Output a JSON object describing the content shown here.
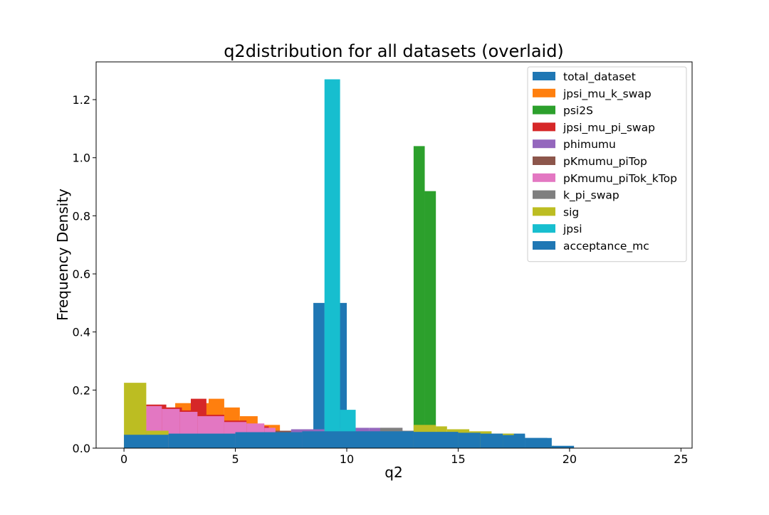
{
  "chart_data": {
    "type": "bar",
    "title": "q2distribution for all datasets (overlaid)",
    "xlabel": "q2",
    "ylabel": "Frequency Density",
    "xlim": [
      -1.25,
      25.5
    ],
    "ylim": [
      0,
      1.33
    ],
    "xticks": [
      0,
      5,
      10,
      15,
      20,
      25
    ],
    "xtick_labels": [
      "0",
      "5",
      "10",
      "15",
      "20",
      "25"
    ],
    "yticks": [
      0.0,
      0.2,
      0.4,
      0.6,
      0.8,
      1.0,
      1.2
    ],
    "ytick_labels": [
      "0.0",
      "0.2",
      "0.4",
      "0.6",
      "0.8",
      "1.0",
      "1.2"
    ],
    "grid": false,
    "legend_position": "top-right",
    "series": [
      {
        "name": "total_dataset",
        "color": "#1f77b4",
        "bins": [
          [
            0.0,
            0.5,
            0.047
          ],
          [
            0.5,
            8.5,
            0.055
          ],
          [
            8.5,
            9.0,
            0.5
          ],
          [
            9.0,
            10.0,
            0.5
          ],
          [
            10.0,
            13.0,
            0.06
          ],
          [
            13.0,
            16.0,
            0.055
          ],
          [
            16.0,
            18.0,
            0.05
          ],
          [
            18.0,
            19.0,
            0.035
          ]
        ]
      },
      {
        "name": "jpsi_mu_k_swap",
        "color": "#ff7f0e",
        "bins": [
          [
            1.0,
            2.3,
            0.14
          ],
          [
            2.3,
            3.8,
            0.155
          ],
          [
            3.8,
            4.5,
            0.17
          ],
          [
            4.5,
            5.2,
            0.14
          ],
          [
            5.2,
            6.0,
            0.11
          ],
          [
            6.0,
            7.0,
            0.08
          ],
          [
            7.0,
            8.0,
            0.06
          ]
        ]
      },
      {
        "name": "psi2S",
        "color": "#2ca02c",
        "bins": [
          [
            13.0,
            13.5,
            1.04
          ],
          [
            13.5,
            14.0,
            0.885
          ]
        ]
      },
      {
        "name": "jpsi_mu_pi_swap",
        "color": "#d62728",
        "bins": [
          [
            1.0,
            1.9,
            0.15
          ],
          [
            1.9,
            2.6,
            0.14
          ],
          [
            2.6,
            3.0,
            0.13
          ],
          [
            3.0,
            3.7,
            0.17
          ],
          [
            3.7,
            4.5,
            0.115
          ],
          [
            4.5,
            5.5,
            0.095
          ],
          [
            5.5,
            6.5,
            0.075
          ]
        ]
      },
      {
        "name": "phimumu",
        "color": "#9467bd",
        "bins": [
          [
            7.5,
            9.0,
            0.065
          ],
          [
            9.0,
            11.0,
            0.07
          ],
          [
            11.0,
            12.5,
            0.07
          ]
        ]
      },
      {
        "name": "pKmumu_piTop",
        "color": "#8c564b",
        "bins": [
          [
            1.0,
            1.5,
            0.1
          ],
          [
            6.0,
            7.5,
            0.06
          ]
        ]
      },
      {
        "name": "pKmumu_piTok_kTop",
        "color": "#e377c2",
        "bins": [
          [
            1.0,
            1.7,
            0.145
          ],
          [
            1.7,
            2.5,
            0.135
          ],
          [
            2.5,
            3.3,
            0.125
          ],
          [
            3.3,
            4.5,
            0.11
          ],
          [
            4.5,
            5.5,
            0.09
          ],
          [
            5.5,
            6.3,
            0.085
          ],
          [
            6.3,
            6.8,
            0.07
          ]
        ]
      },
      {
        "name": "k_pi_swap",
        "color": "#7f7f7f",
        "bins": [
          [
            11.5,
            12.5,
            0.07
          ],
          [
            12.5,
            13.0,
            0.06
          ]
        ]
      },
      {
        "name": "sig",
        "color": "#bcbd22",
        "bins": [
          [
            0.0,
            1.0,
            0.225
          ],
          [
            1.0,
            2.0,
            0.06
          ],
          [
            13.0,
            14.0,
            0.08
          ],
          [
            14.0,
            14.5,
            0.075
          ],
          [
            14.5,
            15.5,
            0.065
          ],
          [
            15.5,
            16.5,
            0.058
          ],
          [
            16.5,
            17.5,
            0.05
          ],
          [
            18.5,
            19.0,
            0.015
          ],
          [
            19.0,
            19.3,
            0.008
          ]
        ]
      },
      {
        "name": "jpsi",
        "color": "#17becf",
        "bins": [
          [
            9.0,
            9.7,
            1.27
          ],
          [
            9.7,
            10.4,
            0.132
          ]
        ]
      },
      {
        "name": "acceptance_mc",
        "color": "#1f77b4",
        "bins": [
          [
            0.0,
            2.0,
            0.046
          ],
          [
            2.0,
            5.0,
            0.05
          ],
          [
            5.0,
            8.0,
            0.055
          ],
          [
            8.0,
            13.0,
            0.058
          ],
          [
            13.0,
            15.0,
            0.056
          ],
          [
            15.0,
            16.0,
            0.053
          ],
          [
            16.0,
            17.0,
            0.05
          ],
          [
            17.0,
            18.0,
            0.045
          ],
          [
            18.0,
            19.2,
            0.035
          ],
          [
            19.2,
            20.2,
            0.008
          ]
        ]
      }
    ]
  }
}
